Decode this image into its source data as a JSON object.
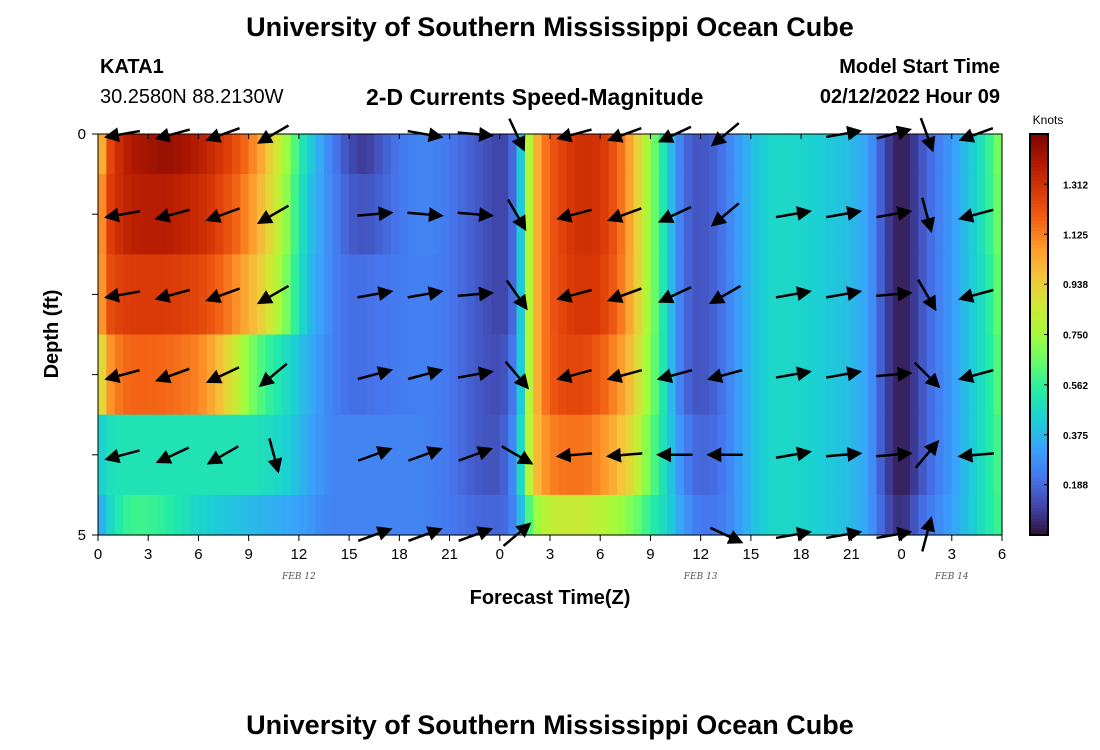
{
  "page": {
    "title": "University of Southern Mississippi Ocean Cube",
    "station": "KATA1",
    "coordinates": "30.2580N  88.2130W",
    "subtitle": "2-D Currents Speed-Magnitude",
    "model_start_label": "Model Start Time",
    "model_start_value": "02/12/2022 Hour 09",
    "bottom_title": "University of Southern Mississippi Ocean Cube"
  },
  "chart_data": {
    "type": "heatmap",
    "xlabel": "Forecast Time(Z)",
    "ylabel": "Depth (ft)",
    "x_ticks": [
      "0",
      "3",
      "6",
      "9",
      "12",
      "15",
      "18",
      "21",
      "0",
      "3",
      "6",
      "9",
      "12",
      "15",
      "18",
      "21",
      "0",
      "3",
      "6"
    ],
    "date_labels": [
      {
        "label": "FEB 12",
        "hour": 12
      },
      {
        "label": "FEB 13",
        "hour": 36
      },
      {
        "label": "FEB 14",
        "hour": 51
      }
    ],
    "y_ticks": [
      "0",
      "",
      "",
      "",
      "",
      "5"
    ],
    "xlim": [
      0,
      54
    ],
    "ylim": [
      0,
      5
    ],
    "colorbar": {
      "title": "Knots",
      "ticks": [
        "1.312",
        "1.125",
        "0.938",
        "0.750",
        "0.562",
        "0.375",
        "0.188"
      ],
      "tick_values": [
        1.312,
        1.125,
        0.938,
        0.75,
        0.562,
        0.375,
        0.188
      ],
      "range": [
        0.0,
        1.5
      ],
      "colors": [
        "#30123b",
        "#4145ab",
        "#4675ed",
        "#39a2fc",
        "#1bcfd4",
        "#24eca6",
        "#61fc6c",
        "#a4fc3b",
        "#d1e834",
        "#f3c63a",
        "#fe9b2d",
        "#f36315",
        "#d93806",
        "#b11901",
        "#7a0402"
      ]
    },
    "speed_profile": {
      "hours": [
        0,
        0.5,
        1,
        1.5,
        2,
        3,
        4,
        5,
        6,
        7,
        8,
        9,
        10,
        11,
        11.5,
        12,
        12.5,
        13,
        13.5,
        14,
        15,
        16,
        17,
        18,
        19,
        20,
        21,
        22,
        23,
        24,
        24.5,
        25,
        25.3,
        25.6,
        26,
        26.5,
        27,
        28,
        29,
        30,
        31,
        32,
        33,
        34,
        34.5,
        35,
        35.5,
        36,
        37,
        38,
        39,
        40,
        41,
        42,
        43,
        44,
        45,
        46,
        47,
        47.5,
        48,
        48.5,
        49,
        49.5,
        50,
        51,
        52,
        53,
        54
      ],
      "depth_levels": [
        "0-0.5",
        "0.5-1.5",
        "1.5-2.5",
        "2.5-3.5",
        "3.5-4.5",
        "4.5-5"
      ],
      "speeds": [
        [
          0.85,
          1.2,
          1.3,
          1.35,
          1.4,
          1.42,
          1.44,
          1.42,
          1.38,
          1.32,
          1.25,
          1.15,
          1.0,
          0.8,
          0.68,
          0.55,
          0.45,
          0.38,
          0.3,
          0.24,
          0.12,
          0.08,
          0.16,
          0.22,
          0.25,
          0.25,
          0.22,
          0.18,
          0.14,
          0.1,
          0.12,
          0.25,
          0.45,
          0.7,
          0.95,
          1.1,
          1.2,
          1.28,
          1.32,
          1.3,
          1.2,
          1.0,
          0.72,
          0.45,
          0.3,
          0.2,
          0.15,
          0.14,
          0.18,
          0.28,
          0.38,
          0.45,
          0.46,
          0.45,
          0.43,
          0.41,
          0.38,
          0.32,
          0.12,
          0.05,
          0.02,
          0.05,
          0.12,
          0.18,
          0.22,
          0.3,
          0.4,
          0.52,
          0.72
        ],
        [
          0.95,
          1.25,
          1.3,
          1.34,
          1.37,
          1.38,
          1.38,
          1.36,
          1.33,
          1.28,
          1.2,
          1.1,
          0.95,
          0.78,
          0.65,
          0.52,
          0.42,
          0.36,
          0.3,
          0.25,
          0.16,
          0.14,
          0.18,
          0.22,
          0.25,
          0.25,
          0.22,
          0.18,
          0.14,
          0.1,
          0.12,
          0.25,
          0.45,
          0.7,
          0.95,
          1.1,
          1.2,
          1.28,
          1.32,
          1.3,
          1.2,
          1.0,
          0.72,
          0.45,
          0.3,
          0.2,
          0.15,
          0.14,
          0.18,
          0.28,
          0.38,
          0.45,
          0.46,
          0.45,
          0.43,
          0.41,
          0.38,
          0.32,
          0.12,
          0.05,
          0.02,
          0.05,
          0.12,
          0.18,
          0.22,
          0.3,
          0.4,
          0.52,
          0.7
        ],
        [
          0.95,
          1.22,
          1.25,
          1.27,
          1.28,
          1.28,
          1.28,
          1.27,
          1.25,
          1.2,
          1.12,
          1.02,
          0.9,
          0.74,
          0.62,
          0.5,
          0.4,
          0.34,
          0.3,
          0.25,
          0.2,
          0.2,
          0.22,
          0.23,
          0.24,
          0.24,
          0.22,
          0.18,
          0.14,
          0.1,
          0.12,
          0.25,
          0.45,
          0.7,
          0.95,
          1.1,
          1.2,
          1.27,
          1.3,
          1.28,
          1.18,
          1.0,
          0.72,
          0.45,
          0.3,
          0.2,
          0.15,
          0.14,
          0.18,
          0.28,
          0.38,
          0.45,
          0.46,
          0.45,
          0.43,
          0.41,
          0.38,
          0.32,
          0.12,
          0.05,
          0.02,
          0.05,
          0.12,
          0.18,
          0.22,
          0.3,
          0.4,
          0.5,
          0.68
        ],
        [
          0.78,
          1.05,
          1.12,
          1.16,
          1.18,
          1.18,
          1.17,
          1.15,
          1.12,
          1.02,
          0.88,
          0.7,
          0.58,
          0.5,
          0.45,
          0.4,
          0.36,
          0.32,
          0.28,
          0.25,
          0.2,
          0.2,
          0.22,
          0.23,
          0.24,
          0.24,
          0.22,
          0.18,
          0.14,
          0.12,
          0.16,
          0.28,
          0.45,
          0.7,
          0.95,
          1.1,
          1.2,
          1.25,
          1.25,
          1.2,
          1.1,
          0.95,
          0.7,
          0.45,
          0.3,
          0.2,
          0.15,
          0.14,
          0.18,
          0.28,
          0.38,
          0.45,
          0.46,
          0.45,
          0.43,
          0.41,
          0.38,
          0.32,
          0.12,
          0.05,
          0.02,
          0.05,
          0.12,
          0.18,
          0.22,
          0.3,
          0.4,
          0.5,
          0.65
        ],
        [
          0.4,
          0.48,
          0.5,
          0.5,
          0.5,
          0.5,
          0.5,
          0.5,
          0.5,
          0.5,
          0.5,
          0.5,
          0.48,
          0.45,
          0.42,
          0.38,
          0.34,
          0.3,
          0.28,
          0.25,
          0.25,
          0.25,
          0.25,
          0.25,
          0.25,
          0.24,
          0.22,
          0.18,
          0.14,
          0.14,
          0.2,
          0.32,
          0.5,
          0.72,
          0.95,
          1.05,
          1.12,
          1.15,
          1.15,
          1.1,
          1.0,
          0.88,
          0.65,
          0.45,
          0.35,
          0.25,
          0.2,
          0.18,
          0.2,
          0.28,
          0.38,
          0.45,
          0.46,
          0.45,
          0.43,
          0.41,
          0.38,
          0.32,
          0.12,
          0.05,
          0.02,
          0.05,
          0.12,
          0.18,
          0.22,
          0.3,
          0.4,
          0.5,
          0.62
        ],
        [
          0.3,
          0.42,
          0.5,
          0.55,
          0.58,
          0.58,
          0.55,
          0.5,
          0.45,
          0.42,
          0.4,
          0.38,
          0.36,
          0.34,
          0.33,
          0.32,
          0.3,
          0.28,
          0.26,
          0.25,
          0.25,
          0.25,
          0.25,
          0.25,
          0.25,
          0.24,
          0.22,
          0.2,
          0.18,
          0.18,
          0.2,
          0.28,
          0.4,
          0.55,
          0.7,
          0.78,
          0.82,
          0.84,
          0.84,
          0.8,
          0.75,
          0.68,
          0.55,
          0.45,
          0.38,
          0.3,
          0.25,
          0.22,
          0.22,
          0.28,
          0.38,
          0.45,
          0.46,
          0.45,
          0.43,
          0.41,
          0.38,
          0.32,
          0.15,
          0.08,
          0.05,
          0.1,
          0.18,
          0.22,
          0.25,
          0.32,
          0.4,
          0.5,
          0.6
        ]
      ]
    },
    "vectors": {
      "hours": [
        1.5,
        4.5,
        7.5,
        10.5,
        16.5,
        19.5,
        22.5,
        25,
        28.5,
        31.5,
        34.5,
        37.5,
        41.5,
        44.5,
        47.5,
        49.5,
        52.5
      ],
      "depths": [
        0,
        1,
        2,
        3,
        4,
        5
      ],
      "directions_deg": [
        [
          190,
          195,
          200,
          210,
          null,
          350,
          355,
          295,
          195,
          200,
          205,
          220,
          null,
          10,
          15,
          290,
          200
        ],
        [
          190,
          195,
          200,
          210,
          5,
          355,
          355,
          300,
          195,
          200,
          205,
          220,
          10,
          10,
          10,
          285,
          195
        ],
        [
          190,
          195,
          200,
          210,
          10,
          10,
          5,
          305,
          195,
          200,
          205,
          210,
          10,
          10,
          5,
          300,
          195
        ],
        [
          195,
          200,
          205,
          220,
          15,
          15,
          10,
          310,
          195,
          195,
          195,
          195,
          10,
          10,
          5,
          315,
          195
        ],
        [
          195,
          205,
          210,
          285,
          20,
          20,
          20,
          330,
          185,
          185,
          180,
          180,
          10,
          5,
          5,
          50,
          185
        ],
        [
          null,
          null,
          null,
          null,
          20,
          20,
          20,
          40,
          null,
          null,
          null,
          335,
          10,
          10,
          10,
          75,
          null
        ]
      ]
    }
  }
}
